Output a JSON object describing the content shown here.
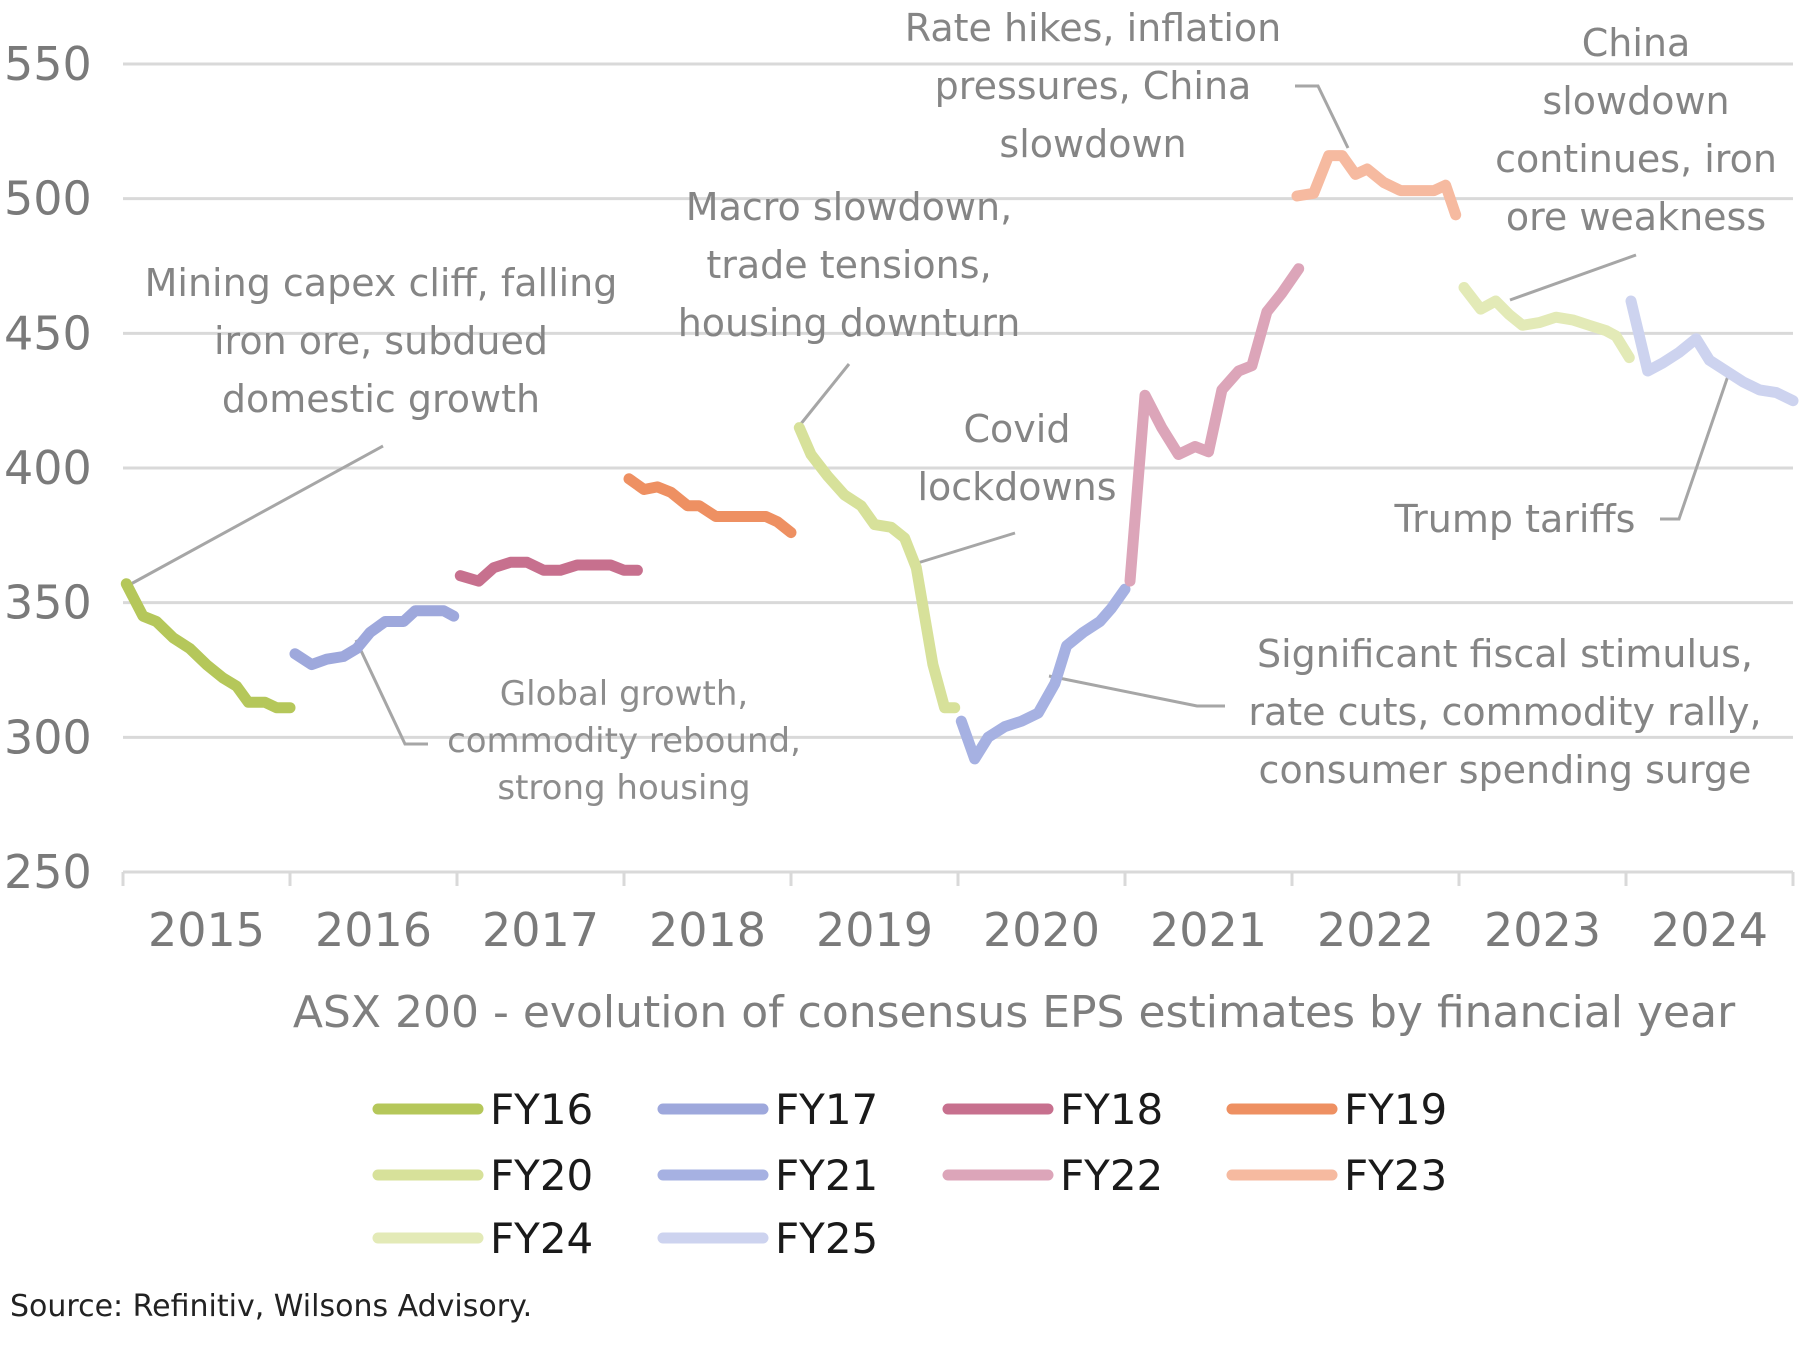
{
  "chart_data": {
    "type": "line",
    "title": "ASX 200 - evolution of consensus EPS estimates by financial year",
    "xlabel": "",
    "ylabel": "",
    "ylim": [
      250,
      550
    ],
    "yticks": [
      "250",
      "300",
      "350",
      "400",
      "450",
      "500",
      "550"
    ],
    "xlim": [
      2015,
      2025
    ],
    "xticks": [
      "2015",
      "2016",
      "2017",
      "2018",
      "2019",
      "2020",
      "2021",
      "2022",
      "2023",
      "2024"
    ],
    "grid": "horizontal",
    "legend_position": "bottom",
    "series": [
      {
        "name": "FY16",
        "color": "#b5c75a",
        "points": [
          [
            2015.02,
            357
          ],
          [
            2015.12,
            345
          ],
          [
            2015.2,
            343
          ],
          [
            2015.3,
            337
          ],
          [
            2015.4,
            333
          ],
          [
            2015.5,
            327
          ],
          [
            2015.6,
            322
          ],
          [
            2015.68,
            319
          ],
          [
            2015.75,
            313
          ],
          [
            2015.85,
            313
          ],
          [
            2015.92,
            311
          ],
          [
            2016.0,
            311
          ]
        ]
      },
      {
        "name": "FY17",
        "color": "#9ea8dc",
        "points": [
          [
            2016.03,
            331
          ],
          [
            2016.13,
            327
          ],
          [
            2016.22,
            329
          ],
          [
            2016.32,
            330
          ],
          [
            2016.4,
            333
          ],
          [
            2016.48,
            339
          ],
          [
            2016.57,
            343
          ],
          [
            2016.68,
            343
          ],
          [
            2016.75,
            347
          ],
          [
            2016.85,
            347
          ],
          [
            2016.92,
            347
          ],
          [
            2016.98,
            345
          ]
        ]
      },
      {
        "name": "FY18",
        "color": "#c7708e",
        "points": [
          [
            2017.02,
            360
          ],
          [
            2017.13,
            358
          ],
          [
            2017.22,
            363
          ],
          [
            2017.32,
            365
          ],
          [
            2017.42,
            365
          ],
          [
            2017.52,
            362
          ],
          [
            2017.62,
            362
          ],
          [
            2017.72,
            364
          ],
          [
            2017.82,
            364
          ],
          [
            2017.92,
            364
          ],
          [
            2018.0,
            362
          ],
          [
            2018.08,
            362
          ]
        ]
      },
      {
        "name": "FY19",
        "color": "#ee9062",
        "points": [
          [
            2018.03,
            396
          ],
          [
            2018.12,
            392
          ],
          [
            2018.2,
            393
          ],
          [
            2018.28,
            391
          ],
          [
            2018.38,
            386
          ],
          [
            2018.45,
            386
          ],
          [
            2018.55,
            382
          ],
          [
            2018.65,
            382
          ],
          [
            2018.75,
            382
          ],
          [
            2018.85,
            382
          ],
          [
            2018.92,
            380
          ],
          [
            2019.0,
            376
          ]
        ]
      },
      {
        "name": "FY20",
        "color": "#d7e19a",
        "points": [
          [
            2019.05,
            415
          ],
          [
            2019.12,
            405
          ],
          [
            2019.22,
            397
          ],
          [
            2019.32,
            390
          ],
          [
            2019.42,
            386
          ],
          [
            2019.5,
            379
          ],
          [
            2019.6,
            378
          ],
          [
            2019.68,
            374
          ],
          [
            2019.75,
            363
          ],
          [
            2019.85,
            327
          ],
          [
            2019.92,
            311
          ],
          [
            2019.98,
            311
          ]
        ]
      },
      {
        "name": "FY21",
        "color": "#a6b1e2",
        "points": [
          [
            2020.02,
            306
          ],
          [
            2020.1,
            292
          ],
          [
            2020.18,
            300
          ],
          [
            2020.28,
            304
          ],
          [
            2020.38,
            306
          ],
          [
            2020.48,
            309
          ],
          [
            2020.58,
            320
          ],
          [
            2020.65,
            334
          ],
          [
            2020.75,
            339
          ],
          [
            2020.85,
            343
          ],
          [
            2020.92,
            348
          ],
          [
            2021.0,
            355
          ]
        ]
      },
      {
        "name": "FY22",
        "color": "#dca5b9",
        "points": [
          [
            2021.03,
            358
          ],
          [
            2021.12,
            427
          ],
          [
            2021.22,
            415
          ],
          [
            2021.32,
            405
          ],
          [
            2021.42,
            408
          ],
          [
            2021.5,
            406
          ],
          [
            2021.58,
            429
          ],
          [
            2021.68,
            436
          ],
          [
            2021.76,
            438
          ],
          [
            2021.85,
            458
          ],
          [
            2021.94,
            465
          ],
          [
            2022.04,
            474
          ]
        ]
      },
      {
        "name": "FY23",
        "color": "#f6baa0",
        "points": [
          [
            2022.03,
            501
          ],
          [
            2022.13,
            502
          ],
          [
            2022.22,
            516
          ],
          [
            2022.3,
            516
          ],
          [
            2022.38,
            509
          ],
          [
            2022.45,
            511
          ],
          [
            2022.55,
            506
          ],
          [
            2022.65,
            503
          ],
          [
            2022.75,
            503
          ],
          [
            2022.85,
            503
          ],
          [
            2022.92,
            505
          ],
          [
            2022.98,
            494
          ]
        ]
      },
      {
        "name": "FY24",
        "color": "#e3eab7",
        "points": [
          [
            2023.03,
            467
          ],
          [
            2023.13,
            459
          ],
          [
            2023.22,
            462
          ],
          [
            2023.3,
            457
          ],
          [
            2023.38,
            453
          ],
          [
            2023.48,
            454
          ],
          [
            2023.58,
            456
          ],
          [
            2023.68,
            455
          ],
          [
            2023.78,
            453
          ],
          [
            2023.88,
            451
          ],
          [
            2023.94,
            449
          ],
          [
            2024.02,
            441
          ]
        ]
      },
      {
        "name": "FY25",
        "color": "#cdd3ef",
        "points": [
          [
            2024.03,
            462
          ],
          [
            2024.13,
            436
          ],
          [
            2024.22,
            439
          ],
          [
            2024.32,
            443
          ],
          [
            2024.42,
            448
          ],
          [
            2024.5,
            440
          ],
          [
            2024.6,
            436
          ],
          [
            2024.7,
            432
          ],
          [
            2024.8,
            429
          ],
          [
            2024.9,
            428
          ],
          [
            2025.0,
            425
          ]
        ]
      }
    ],
    "annotations": [
      {
        "lines": [
          "Mining capex cliff, falling",
          "iron ore, subdued",
          "domestic growth"
        ]
      },
      {
        "lines": [
          "Global growth,",
          "commodity rebound,",
          "strong housing"
        ]
      },
      {
        "lines": [
          "Macro slowdown,",
          "trade tensions,",
          "housing downturn"
        ]
      },
      {
        "lines": [
          "Covid",
          "lockdowns"
        ]
      },
      {
        "lines": [
          "Rate hikes, inflation",
          "pressures, China",
          "slowdown"
        ]
      },
      {
        "lines": [
          "Significant fiscal stimulus,",
          "rate cuts, commodity rally,",
          "consumer spending surge"
        ]
      },
      {
        "lines": [
          "China",
          "slowdown",
          "continues, iron",
          "ore weakness"
        ]
      },
      {
        "lines": [
          "Trump tariffs"
        ]
      }
    ]
  },
  "source": "Source: Refinitiv, Wilsons Advisory."
}
